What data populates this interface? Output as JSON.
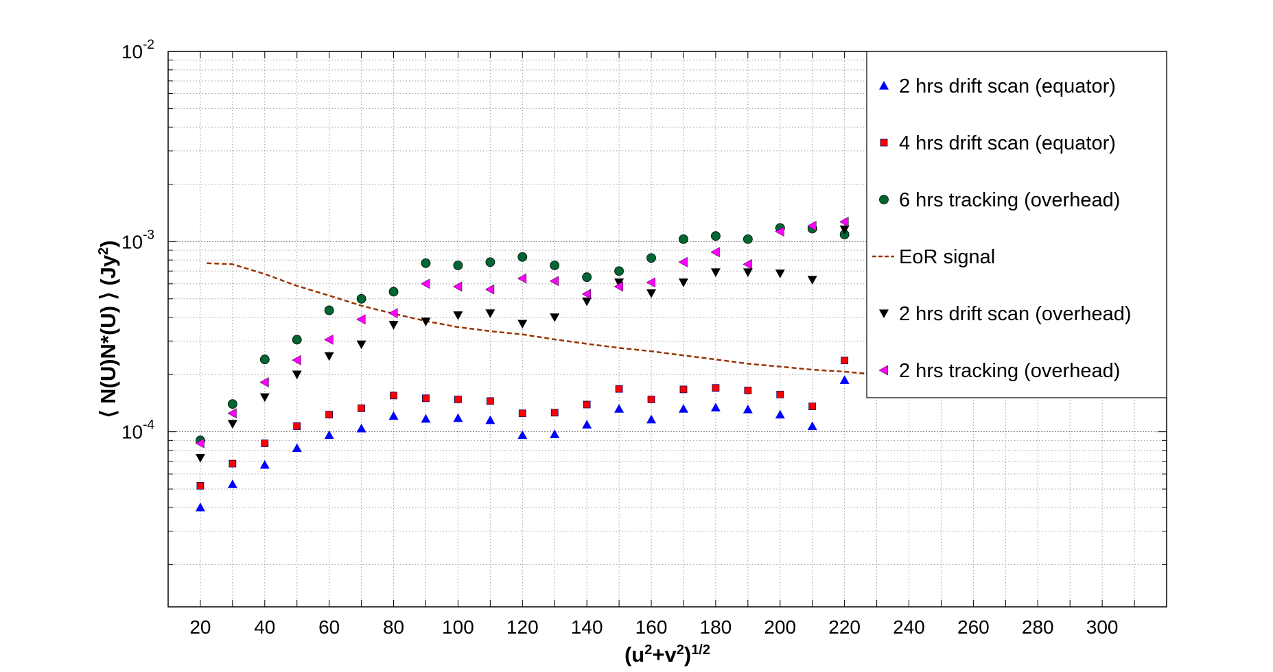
{
  "chart_data": {
    "type": "scatter",
    "title": "",
    "xlabel": {
      "base": "(u",
      "sup1": "2",
      "mid": "+v",
      "sup2": "2",
      "close": ")",
      "sup3": "1/2"
    },
    "ylabel": {
      "pre": "⟨ N(U)N*(U) ⟩ (Jy",
      "sup": "2",
      "post": ")"
    },
    "x_scale": "linear",
    "y_scale": "log",
    "xlim": [
      10,
      320
    ],
    "ylim": [
      1.2e-05,
      0.01
    ],
    "x_ticks": [
      20,
      40,
      60,
      80,
      100,
      120,
      140,
      160,
      180,
      200,
      220,
      240,
      260,
      280,
      300
    ],
    "y_ticks": [
      {
        "value": 0.0001,
        "base": "10",
        "exp": "-4"
      },
      {
        "value": 0.001,
        "base": "10",
        "exp": "-3"
      },
      {
        "value": 0.01,
        "base": "10",
        "exp": "-2"
      }
    ],
    "grid": true,
    "legend_position": "top-right",
    "series": [
      {
        "name": "2 hrs drift scan (equator)",
        "marker": "triangle-up",
        "color": "#0000ff",
        "x": [
          20,
          30,
          40,
          50,
          60,
          70,
          80,
          90,
          100,
          110,
          120,
          130,
          140,
          150,
          160,
          170,
          180,
          190,
          200,
          210,
          220
        ],
        "y": [
          4e-05,
          5.3e-05,
          6.7e-05,
          8.2e-05,
          9.6e-05,
          0.000104,
          0.000121,
          0.000117,
          0.000118,
          0.000115,
          9.6e-05,
          9.7e-05,
          0.000109,
          0.000132,
          0.000116,
          0.000132,
          0.000134,
          0.000131,
          0.000123,
          0.000107,
          0.000187
        ]
      },
      {
        "name": "4 hrs drift scan (equator)",
        "marker": "square",
        "color": "#ff0000",
        "x": [
          20,
          30,
          40,
          50,
          60,
          70,
          80,
          90,
          100,
          110,
          120,
          130,
          140,
          150,
          160,
          170,
          180,
          190,
          200,
          210,
          220
        ],
        "y": [
          5.2e-05,
          6.8e-05,
          8.7e-05,
          0.000107,
          0.000123,
          0.000133,
          0.000155,
          0.00015,
          0.000148,
          0.000145,
          0.000125,
          0.000126,
          0.000139,
          0.000168,
          0.000148,
          0.000167,
          0.00017,
          0.000165,
          0.000157,
          0.000136,
          0.000237
        ]
      },
      {
        "name": "6 hrs tracking (overhead)",
        "marker": "circle",
        "color": "#006633",
        "x": [
          20,
          30,
          40,
          50,
          60,
          70,
          80,
          90,
          100,
          110,
          120,
          130,
          140,
          150,
          160,
          170,
          180,
          190,
          200,
          210,
          220
        ],
        "y": [
          9e-05,
          0.00014,
          0.00024,
          0.000305,
          0.000435,
          0.0005,
          0.000545,
          0.00077,
          0.00075,
          0.00078,
          0.00083,
          0.00075,
          0.00065,
          0.0007,
          0.00082,
          0.00103,
          0.00107,
          0.00103,
          0.00118,
          0.00117,
          0.00109
        ]
      },
      {
        "name": "EoR signal",
        "marker": "dashed-line",
        "color": "#993300",
        "x": [
          22,
          30,
          40,
          50,
          60,
          70,
          80,
          90,
          100,
          110,
          120,
          130,
          140,
          150,
          160,
          170,
          180,
          190,
          200,
          210,
          220,
          230,
          240
        ],
        "y": [
          0.00077,
          0.00076,
          0.000675,
          0.000585,
          0.00052,
          0.00046,
          0.000418,
          0.000382,
          0.000355,
          0.000338,
          0.000325,
          0.000306,
          0.00029,
          0.000276,
          0.000265,
          0.000252,
          0.00024,
          0.000228,
          0.00022,
          0.000212,
          0.000207,
          0.0002,
          0.000195
        ]
      },
      {
        "name": "2 hrs drift scan (overhead)",
        "marker": "triangle-down",
        "color": "#000000",
        "x": [
          20,
          30,
          40,
          50,
          60,
          70,
          80,
          90,
          100,
          110,
          120,
          130,
          140,
          150,
          160,
          170,
          180,
          190,
          200,
          210,
          220
        ],
        "y": [
          7.3e-05,
          0.00011,
          0.000152,
          0.0002,
          0.00025,
          0.000288,
          0.000365,
          0.00038,
          0.00041,
          0.00042,
          0.00037,
          0.0004,
          0.000485,
          0.00061,
          0.000535,
          0.00061,
          0.00069,
          0.00069,
          0.00068,
          0.00063,
          0.00116
        ]
      },
      {
        "name": "2 hrs tracking (overhead)",
        "marker": "triangle-left",
        "color": "#ff00ff",
        "x": [
          20,
          30,
          40,
          50,
          60,
          70,
          80,
          90,
          100,
          110,
          120,
          130,
          140,
          150,
          160,
          170,
          180,
          190,
          200,
          210,
          220
        ],
        "y": [
          8.7e-05,
          0.000125,
          0.000182,
          0.000238,
          0.000305,
          0.00039,
          0.00042,
          0.0006,
          0.00058,
          0.00056,
          0.00064,
          0.00062,
          0.00053,
          0.00058,
          0.00061,
          0.00078,
          0.00088,
          0.00076,
          0.00113,
          0.00121,
          0.00127
        ]
      }
    ]
  }
}
